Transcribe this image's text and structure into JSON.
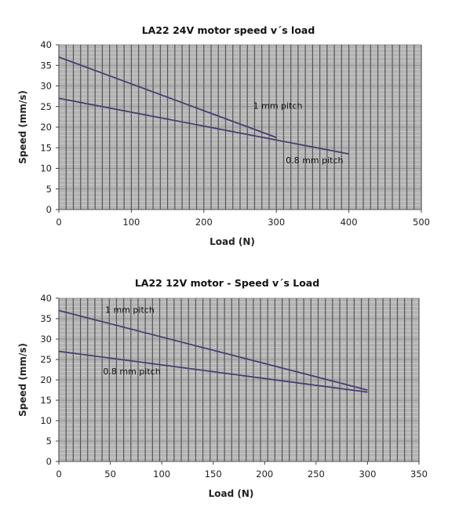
{
  "chart_data": [
    {
      "type": "line",
      "title": "LA22 24V motor speed v´s load",
      "xlabel": "Load (N)",
      "ylabel": "Speed (mm/s)",
      "xlim": [
        0,
        500
      ],
      "ylim": [
        0,
        40
      ],
      "xticks": [
        0,
        100,
        200,
        300,
        400,
        500
      ],
      "yticks": [
        0,
        5,
        10,
        15,
        20,
        25,
        30,
        35,
        40
      ],
      "grid": true,
      "background": "#b4b4b4",
      "line_color": "#4a3d6e",
      "series": [
        {
          "name": "1 mm pitch",
          "x": [
            0,
            300
          ],
          "y": [
            37,
            17.5
          ]
        },
        {
          "name": "0.8 mm pitch",
          "x": [
            0,
            400
          ],
          "y": [
            27,
            13.5
          ]
        }
      ],
      "annotations": [
        {
          "text": "1 mm pitch",
          "x": 268,
          "y": 24.5
        },
        {
          "text": "0.8 mm pitch",
          "x": 313,
          "y": 11.2
        }
      ]
    },
    {
      "type": "line",
      "title": "LA22 12V motor - Speed v´s Load",
      "xlabel": "Load (N)",
      "ylabel": "Speed (mm/s)",
      "xlim": [
        0,
        350
      ],
      "ylim": [
        0,
        40
      ],
      "xticks": [
        0,
        50,
        100,
        150,
        200,
        250,
        300,
        350
      ],
      "yticks": [
        0,
        5,
        10,
        15,
        20,
        25,
        30,
        35,
        40
      ],
      "grid": true,
      "background": "#b4b4b4",
      "line_color": "#4a3d6e",
      "series": [
        {
          "name": "1 mm pitch",
          "x": [
            0,
            300
          ],
          "y": [
            37,
            17.5
          ]
        },
        {
          "name": "0.8 mm pitch",
          "x": [
            0,
            300
          ],
          "y": [
            27,
            17
          ]
        }
      ],
      "annotations": [
        {
          "text": "1 mm pitch",
          "x": 45,
          "y": 36.4
        },
        {
          "text": "0.8 mm pitch",
          "x": 43,
          "y": 21.3
        }
      ]
    }
  ]
}
